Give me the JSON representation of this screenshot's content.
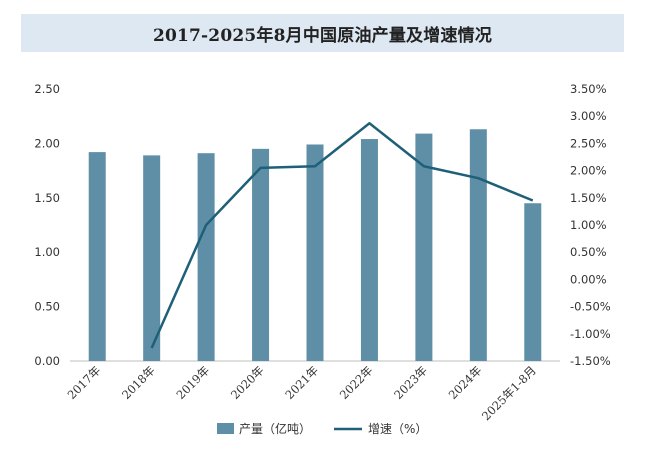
{
  "chart_data": {
    "type": "bar+line",
    "title": "2017-2025年8月中国原油产量及增速情况",
    "categories": [
      "2017年",
      "2018年",
      "2019年",
      "2020年",
      "2021年",
      "2022年",
      "2023年",
      "2024年",
      "2025年1-8月"
    ],
    "series": [
      {
        "name": "产量（亿吨）",
        "type": "bar",
        "axis": "left",
        "color": "#5f8fa6",
        "values": [
          1.92,
          1.89,
          1.91,
          1.95,
          1.99,
          2.04,
          2.09,
          2.13,
          1.45
        ]
      },
      {
        "name": "增速（%）",
        "type": "line",
        "axis": "right",
        "color": "#1f5f78",
        "values": [
          null,
          -1.26,
          1.0,
          2.05,
          2.08,
          2.87,
          2.08,
          1.86,
          1.45
        ]
      }
    ],
    "y_left": {
      "min": 0,
      "max": 2.5,
      "ticks": [
        "0.00",
        "0.50",
        "1.00",
        "1.50",
        "2.00",
        "2.50"
      ]
    },
    "y_right": {
      "min": -1.5,
      "max": 3.5,
      "ticks": [
        "-1.50%",
        "-1.00%",
        "-0.50%",
        "0.00%",
        "0.50%",
        "1.00%",
        "1.50%",
        "2.00%",
        "2.50%",
        "3.00%",
        "3.50%"
      ]
    },
    "legend": {
      "position": "bottom-center"
    }
  }
}
